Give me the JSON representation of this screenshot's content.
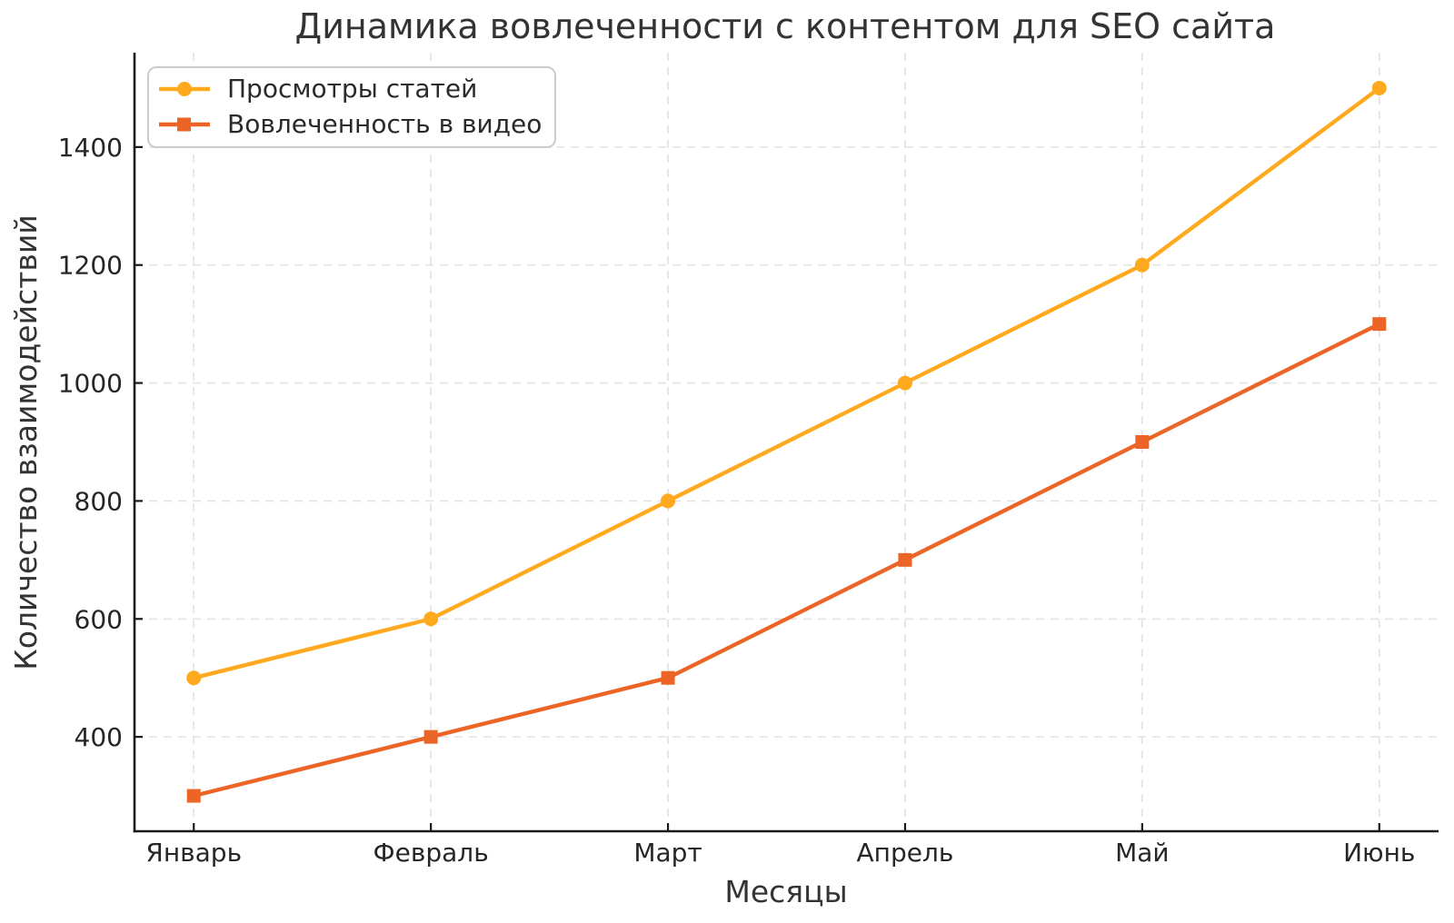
{
  "chart_data": {
    "type": "line",
    "title": "Динамика вовлеченности с контентом для SEO сайта",
    "xlabel": "Месяцы",
    "ylabel": "Количество взаимодействий",
    "categories": [
      "Январь",
      "Февраль",
      "Март",
      "Апрель",
      "Май",
      "Июнь"
    ],
    "series": [
      {
        "name": "Просмотры статей",
        "values": [
          500,
          600,
          800,
          1000,
          1200,
          1500
        ],
        "color": "#FFA91E",
        "marker": "circle"
      },
      {
        "name": "Вовлеченность в видео",
        "values": [
          300,
          400,
          500,
          700,
          900,
          1100
        ],
        "color": "#EC6527",
        "marker": "square"
      }
    ],
    "yticks": [
      400,
      600,
      800,
      1000,
      1200,
      1400
    ],
    "ylim": [
      240,
      1560
    ],
    "grid": true,
    "grid_style": "dashed",
    "legend_position": "upper left"
  },
  "style": {
    "background": "#FFFFFF",
    "grid_color": "#E2E2E2",
    "axis_color": "#1A1A1A",
    "title_color": "#333333",
    "label_color": "#333333",
    "tick_color": "#262626",
    "legend_border_color": "#CCCCCC",
    "legend_text_color": "#2A2A2A"
  }
}
